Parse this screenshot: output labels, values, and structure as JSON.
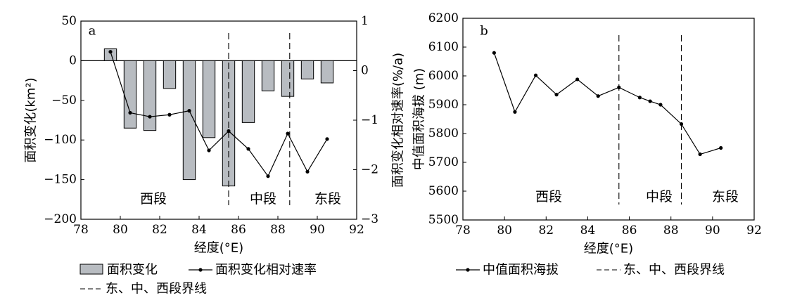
{
  "chart_data": [
    {
      "panel_label": "a",
      "type": "bar+line",
      "xlabel": "经度(°E)",
      "ylabel_left": "面积变化(km²)",
      "ylabel_right": "面积变化相对速率(%/a)",
      "xlim": [
        78,
        92
      ],
      "x_ticks": [
        "78",
        "80",
        "82",
        "84",
        "86",
        "88",
        "90",
        "92"
      ],
      "ylim_left": [
        -200,
        50
      ],
      "y_left_ticks": [
        "50",
        "0",
        "−50",
        "−100",
        "−150",
        "−200"
      ],
      "ylim_right": [
        -3,
        1
      ],
      "y_right_ticks": [
        "1",
        "0",
        "−1",
        "−2",
        "−3"
      ],
      "bar_series": {
        "name": "面积变化",
        "x": [
          79.5,
          80.5,
          81.5,
          82.5,
          83.5,
          84.5,
          85.5,
          86.5,
          87.5,
          88.5,
          89.5,
          90.5
        ],
        "values": [
          15,
          -85,
          -88,
          -35,
          -150,
          -97,
          -158,
          -78,
          -38,
          -45,
          -23,
          -28
        ]
      },
      "line_series": {
        "name": "面积变化相对速率",
        "x": [
          79.5,
          80.5,
          81.5,
          82.5,
          83.5,
          84.5,
          85.5,
          86.5,
          87.5,
          88.5,
          89.5,
          90.5
        ],
        "values": [
          0.38,
          -0.85,
          -0.93,
          -0.89,
          -0.81,
          -1.61,
          -1.22,
          -1.58,
          -2.13,
          -1.27,
          -2.04,
          -1.38
        ]
      },
      "boundaries": {
        "name": "东、中、西段界线",
        "x": [
          85.5,
          88.6
        ]
      },
      "region_labels": [
        "西段",
        "中段",
        "东段"
      ],
      "zero_line": true
    },
    {
      "panel_label": "b",
      "type": "line",
      "xlabel": "经度(°E)",
      "ylabel": "中值面积海拔 (m)",
      "xlim": [
        78,
        92
      ],
      "x_ticks": [
        "78",
        "80",
        "82",
        "84",
        "86",
        "88",
        "90",
        "92"
      ],
      "ylim": [
        5500,
        6200
      ],
      "y_ticks": [
        "6200",
        "6100",
        "6000",
        "5900",
        "5800",
        "5700",
        "5600",
        "5500"
      ],
      "series": {
        "name": "中值面积海拔",
        "x": [
          79.5,
          80.5,
          81.5,
          82.5,
          83.5,
          84.5,
          85.5,
          86.5,
          87,
          87.5,
          88.5,
          89.4,
          90.4
        ],
        "values": [
          6080,
          5875,
          6002,
          5935,
          5988,
          5930,
          5960,
          5925,
          5912,
          5900,
          5833,
          5728,
          5750
        ]
      },
      "boundaries": {
        "name": "东、中、西段界线",
        "x": [
          85.5,
          88.5
        ]
      },
      "region_labels": [
        "西段",
        "中段",
        "东段"
      ]
    }
  ],
  "legend_a": {
    "bar_label": "面积变化",
    "line_label": "面积变化相对速率",
    "dash_label": "东、中、西段界线"
  },
  "legend_b": {
    "line_label": "中值面积海拔",
    "dash_label": "东、中、西段界线"
  },
  "colors": {
    "bar_fill": "#b8bcc1",
    "line": "#000000",
    "axis": "#000000"
  }
}
